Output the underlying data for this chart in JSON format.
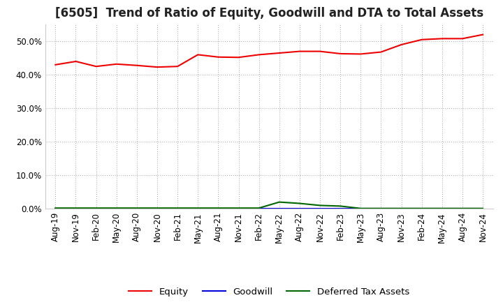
{
  "title": "[6505]  Trend of Ratio of Equity, Goodwill and DTA to Total Assets",
  "background_color": "#ffffff",
  "plot_background_color": "#ffffff",
  "grid_color": "#999999",
  "ylim": [
    0.0,
    0.55
  ],
  "yticks": [
    0.0,
    0.1,
    0.2,
    0.3,
    0.4,
    0.5
  ],
  "x_labels": [
    "Aug-19",
    "Nov-19",
    "Feb-20",
    "May-20",
    "Aug-20",
    "Nov-20",
    "Feb-21",
    "May-21",
    "Aug-21",
    "Nov-21",
    "Feb-22",
    "May-22",
    "Aug-22",
    "Nov-22",
    "Feb-23",
    "May-23",
    "Aug-23",
    "Nov-23",
    "Feb-24",
    "May-24",
    "Aug-24",
    "Nov-24"
  ],
  "equity": [
    0.43,
    0.44,
    0.425,
    0.432,
    0.428,
    0.423,
    0.425,
    0.46,
    0.453,
    0.452,
    0.46,
    0.465,
    0.47,
    0.47,
    0.463,
    0.462,
    0.468,
    0.49,
    0.505,
    0.508,
    0.508,
    0.52
  ],
  "goodwill": [
    0.001,
    0.001,
    0.001,
    0.001,
    0.001,
    0.001,
    0.001,
    0.001,
    0.001,
    0.001,
    0.001,
    0.001,
    0.001,
    0.001,
    0.001,
    0.001,
    0.001,
    0.001,
    0.001,
    0.001,
    0.001,
    0.001
  ],
  "dta": [
    0.002,
    0.002,
    0.002,
    0.002,
    0.002,
    0.002,
    0.002,
    0.002,
    0.002,
    0.002,
    0.002,
    0.02,
    0.016,
    0.01,
    0.008,
    0.001,
    0.001,
    0.001,
    0.001,
    0.001,
    0.001,
    0.001
  ],
  "equity_color": "#ee0000",
  "goodwill_color": "#0000dd",
  "dta_color": "#006600",
  "legend_labels": [
    "Equity",
    "Goodwill",
    "Deferred Tax Assets"
  ],
  "title_fontsize": 12,
  "tick_fontsize": 8.5,
  "legend_fontsize": 9.5
}
